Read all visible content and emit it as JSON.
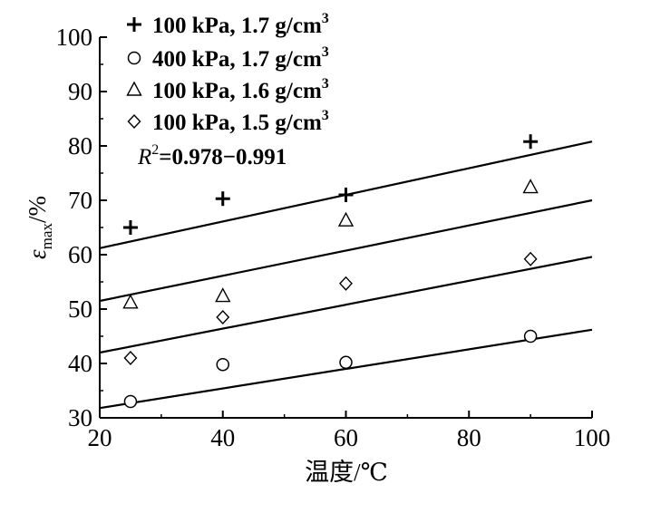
{
  "chart_data": {
    "type": "scatter",
    "title": "",
    "xlabel": "温度/℃",
    "ylabel_symbol": "ε",
    "ylabel_subscript": "max",
    "ylabel_unit": "/%",
    "xlim": [
      20,
      100
    ],
    "ylim": [
      30,
      100
    ],
    "x_ticks": [
      20,
      40,
      60,
      80,
      100
    ],
    "y_ticks": [
      30,
      40,
      50,
      60,
      70,
      80,
      90,
      100
    ],
    "grid": false,
    "legend_position": "top-left",
    "series": [
      {
        "name_main": "100 kPa, 1.7 g/cm",
        "name_sup": "3",
        "marker": "plus",
        "points": [
          [
            25,
            65
          ],
          [
            40,
            70.3
          ],
          [
            60,
            71
          ],
          [
            90,
            80.8
          ]
        ],
        "fit": [
          [
            20,
            61.2
          ],
          [
            100,
            80.8
          ]
        ]
      },
      {
        "name_main": "400 kPa, 1.7 g/cm",
        "name_sup": "3",
        "marker": "circle",
        "points": [
          [
            25,
            33
          ],
          [
            40,
            39.8
          ],
          [
            60,
            40.2
          ],
          [
            90,
            45
          ]
        ],
        "fit": [
          [
            20,
            31.8
          ],
          [
            100,
            46.2
          ]
        ]
      },
      {
        "name_main": "100 kPa, 1.6 g/cm",
        "name_sup": "3",
        "marker": "triangle",
        "points": [
          [
            25,
            51.2
          ],
          [
            40,
            52.4
          ],
          [
            60,
            66.3
          ],
          [
            90,
            72.4
          ]
        ],
        "fit": [
          [
            20,
            51.5
          ],
          [
            100,
            70
          ]
        ]
      },
      {
        "name_main": "100 kPa, 1.5 g/cm",
        "name_sup": "3",
        "marker": "diamond",
        "points": [
          [
            25,
            41
          ],
          [
            40,
            48.5
          ],
          [
            60,
            54.7
          ],
          [
            90,
            59.2
          ]
        ],
        "fit": [
          [
            20,
            42
          ],
          [
            100,
            59.6
          ]
        ]
      }
    ],
    "annotation": {
      "label": "R",
      "sup": "2",
      "text": "=0.978−0.991"
    }
  }
}
